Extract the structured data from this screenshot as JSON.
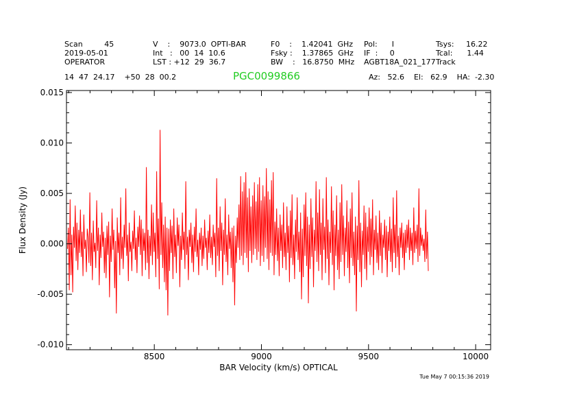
{
  "header": {
    "row1": [
      "Scan         45",
      "V    :    9073.0  OPTI-BAR",
      "F0    :    1.42041  GHz",
      "Pol:      I",
      "Tsys:     16.22"
    ],
    "row2": [
      "2019-05-01",
      "Int   :   00  14  10.6",
      "Fsky :    1.37865  GHz",
      "IF  :     0",
      "Tcal:      1.44"
    ],
    "row3": [
      "OPERATOR",
      "LST : +12  29  36.7",
      "BW    :   16.8750  MHz",
      "AGBT18A_021_177",
      "Track"
    ],
    "coords": "14  47  24.17    +50  28  00.2",
    "source": "PGC0099866",
    "pointing": "Az:   52.6    El:   62.9    HA:  -2.30",
    "timestamp": "Tue May   7 00:15:36 2019"
  },
  "colors": {
    "trace": "#ff0000",
    "source": "#22cc22",
    "axes": "#000000"
  },
  "chart_data": {
    "type": "line",
    "xlabel": "BAR Velocity (km/s) OPTICAL",
    "ylabel": "Flux Density (Jy)",
    "xlim": [
      8090,
      10070
    ],
    "ylim": [
      -0.0105,
      0.0152
    ],
    "xticks": [
      8500,
      9000,
      9500,
      10000
    ],
    "xtick_labels": [
      "8500",
      "9000",
      "9500",
      "10000"
    ],
    "yticks": [
      -0.01,
      -0.005,
      0.0,
      0.005,
      0.01,
      0.015
    ],
    "ytick_labels": [
      "-0.010",
      "-0.005",
      "0.000",
      "0.005",
      "0.010",
      "0.015"
    ],
    "grid": false,
    "series": [
      {
        "x_start": 8095,
        "x_step": 4,
        "values": [
          -0.0005,
          0.0016,
          -0.0046,
          0.0044,
          -0.0031,
          0.0009,
          -0.0048,
          0.0017,
          -0.0004,
          0.0038,
          -0.0017,
          0.0021,
          -0.0026,
          0.0014,
          -0.0009,
          0.0034,
          -0.0013,
          0.0012,
          -0.0032,
          0.0029,
          -0.0005,
          0.0004,
          -0.0028,
          0.0015,
          0.0006,
          -0.0019,
          0.0051,
          -0.0022,
          0.0011,
          -0.0036,
          0.0023,
          -0.0008,
          0.0001,
          -0.0024,
          0.0043,
          -0.0007,
          0.0016,
          -0.0041,
          0.0009,
          -0.0014,
          0.0031,
          -0.0003,
          0.0012,
          -0.0029,
          0.0006,
          -0.0034,
          0.0018,
          -0.0011,
          0.0022,
          -0.0053,
          0.0008,
          -0.0018,
          0.0035,
          -0.0006,
          0.0014,
          -0.0044,
          0.0003,
          -0.0069,
          0.0026,
          -0.0009,
          0.0011,
          -0.0031,
          0.0046,
          -0.0015,
          0.0007,
          -0.0025,
          0.0019,
          -0.0004,
          0.0055,
          -0.0012,
          0.0009,
          -0.0037,
          0.0021,
          -0.0008,
          0.0002,
          -0.0027,
          0.0013,
          -0.0005,
          0.0033,
          -0.0016,
          0.0006,
          -0.0029,
          0.0017,
          -0.0003,
          0.0028,
          -0.0011,
          0.0024,
          -0.0032,
          0.0015,
          -0.0007,
          0.0011,
          -0.0026,
          0.0076,
          -0.0019,
          0.0014,
          -0.0035,
          0.0008,
          -0.0012,
          0.0039,
          -0.0021,
          0.0031,
          -0.0008,
          0.0011,
          -0.0033,
          0.0072,
          -0.0015,
          0.0025,
          -0.0045,
          0.0113,
          -0.0011,
          0.0041,
          -0.0024,
          0.0019,
          -0.0038,
          0.0027,
          -0.0046,
          0.0016,
          -0.0071,
          0.0015,
          -0.0027,
          0.0024,
          -0.0009,
          0.0018,
          -0.0035,
          0.0035,
          -0.0013,
          0.0009,
          -0.0029,
          0.0026,
          -0.0002,
          0.0019,
          -0.0043,
          0.0008,
          -0.0016,
          0.0031,
          -0.0006,
          0.0012,
          -0.0025,
          0.0062,
          -0.0011,
          0.0007,
          -0.0036,
          0.0014,
          -0.0003,
          0.0021,
          -0.0019,
          0.0009,
          -0.0028,
          0.0017,
          -0.0008,
          0.0035,
          -0.0013,
          0.0004,
          -0.0031,
          0.0011,
          -0.0006,
          0.0016,
          -0.0022,
          0.0008,
          -0.0015,
          0.0024,
          -0.0004,
          0.0006,
          -0.0026,
          0.0013,
          -0.0009,
          0.0029,
          -0.0014,
          0.0007,
          -0.0021,
          0.0019,
          -0.0003,
          0.0011,
          -0.0033,
          0.0065,
          -0.0012,
          0.0016,
          -0.0027,
          0.0037,
          -0.0007,
          0.0021,
          -0.0041,
          0.0014,
          -0.0011,
          0.0045,
          -0.0018,
          0.0009,
          -0.0031,
          0.0029,
          -0.0005,
          0.0012,
          -0.0024,
          0.0016,
          -0.0038,
          0.0018,
          -0.0061,
          0.0008,
          -0.0019,
          0.0026,
          -0.0004,
          0.0039,
          -0.0016,
          0.0067,
          -0.0012,
          0.0052,
          -0.0021,
          0.0061,
          -0.0009,
          0.0071,
          -0.0014,
          0.0046,
          -0.0028,
          0.0055,
          -0.0007,
          0.0037,
          -0.0019,
          0.0048,
          -0.0011,
          0.0061,
          -0.0005,
          0.0042,
          -0.0016,
          0.0059,
          -0.0008,
          0.0066,
          -0.0022,
          0.0043,
          -0.0012,
          0.0058,
          -0.0018,
          0.0047,
          -0.0004,
          0.0075,
          -0.0015,
          0.0052,
          -0.0026,
          0.0044,
          -0.0009,
          0.0063,
          -0.0012,
          0.0071,
          -0.0031,
          0.0022,
          -0.0011,
          0.0035,
          -0.0017,
          0.0016,
          -0.0032,
          0.0029,
          -0.0007,
          0.0019,
          -0.0024,
          0.0041,
          -0.0013,
          0.0011,
          -0.0026,
          0.0037,
          -0.0009,
          0.0018,
          -0.0038,
          0.0033,
          -0.0014,
          0.0049,
          -0.0021,
          0.0009,
          -0.0035,
          0.0024,
          -0.0008,
          0.0046,
          -0.0016,
          0.0012,
          -0.0028,
          0.0031,
          -0.0055,
          0.0015,
          -0.0033,
          0.0039,
          -0.0012,
          0.0051,
          -0.0022,
          0.0027,
          -0.0059,
          0.0019,
          -0.0025,
          0.0045,
          -0.0013,
          0.0026,
          -0.0043,
          0.0014,
          -0.0007,
          0.0062,
          -0.0018,
          0.0031,
          -0.0027,
          0.0054,
          -0.0011,
          0.0021,
          -0.0036,
          0.0045,
          -0.0006,
          0.0017,
          -0.0029,
          0.0066,
          -0.0015,
          0.0024,
          -0.0041,
          0.0012,
          -0.0009,
          0.0057,
          -0.0021,
          0.0033,
          -0.0046,
          0.0019,
          -0.0012,
          0.0048,
          -0.0026,
          0.0014,
          -0.0035,
          0.0041,
          -0.0018,
          0.0059,
          -0.0011,
          0.0028,
          -0.0032,
          0.0016,
          -0.0008,
          0.0043,
          -0.0024,
          0.0022,
          -0.0039,
          0.0035,
          -0.0014,
          0.0051,
          -0.0022,
          0.0012,
          -0.0031,
          0.0027,
          -0.0067,
          0.0018,
          -0.0016,
          0.0063,
          -0.0028,
          0.0021,
          -0.0043,
          0.0013,
          -0.0011,
          0.0038,
          -0.0025,
          0.0031,
          -0.0036,
          0.0017,
          -0.0008,
          0.0036,
          -0.0021,
          0.0025,
          -0.0013,
          0.0044,
          -0.0031,
          0.0014,
          -0.0006,
          0.0028,
          -0.0019,
          0.0011,
          -0.0026,
          0.0033,
          -0.0012,
          0.0021,
          -0.0029,
          0.0009,
          -0.0004,
          0.0024,
          -0.0016,
          0.0018,
          -0.0033,
          0.0012,
          -0.0007,
          0.0027,
          -0.0018,
          0.0015,
          -0.0028,
          0.0046,
          -0.0009,
          0.0019,
          -0.0024,
          0.0053,
          -0.0013,
          0.0008,
          -0.0031,
          0.0016,
          -0.0004,
          0.0021,
          -0.0014,
          0.0011,
          -0.0026,
          0.0014,
          -0.0009,
          0.0019,
          -0.0004,
          0.0024,
          -0.0016,
          0.0016,
          -0.0007,
          0.0011,
          -0.0021,
          0.0036,
          -0.0009,
          0.0013,
          -0.0005,
          0.0019,
          -0.0018,
          0.0055,
          -0.0012,
          0.0016,
          -0.0002,
          0.0009,
          -0.0007,
          0.0005,
          -0.0018,
          0.0034,
          -0.0015,
          0.0012,
          -0.0027
        ]
      }
    ]
  }
}
